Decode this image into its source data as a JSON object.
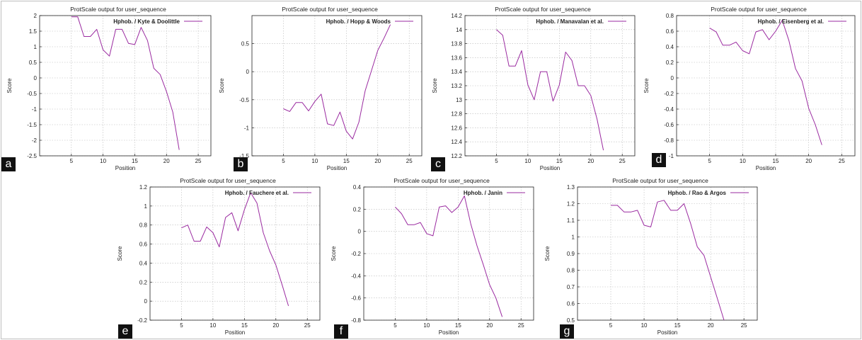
{
  "colors": {
    "series": "#9a2aa0",
    "grid": "#b8b8b8",
    "axis": "#222222",
    "tag_bg": "#111111",
    "tag_text": "#ffffff"
  },
  "chart_data": [
    {
      "tag": "a",
      "type": "line",
      "title": "ProtScale output for user_sequence",
      "xlabel": "Position",
      "ylabel": "Score",
      "xlim": [
        0,
        27
      ],
      "ylim": [
        -2.5,
        2
      ],
      "xticks": [
        5,
        10,
        15,
        20,
        25
      ],
      "xtick_labels": [
        "5",
        "10",
        "15",
        "20",
        "25"
      ],
      "yticks": [
        -2.5,
        -2,
        -1.5,
        -1,
        -0.5,
        0,
        0.5,
        1,
        1.5,
        2
      ],
      "ytick_labels": [
        "-2.5",
        "-2",
        "-1.5",
        "-1",
        "-0.5",
        "0",
        "0.5",
        "1",
        "1.5",
        "2"
      ],
      "grid": true,
      "legend_position": "top-right",
      "series": [
        {
          "name": "Hphob. / Kyte & Doolittle",
          "x": [
            5,
            6,
            7,
            8,
            9,
            10,
            11,
            12,
            13,
            14,
            15,
            16,
            17,
            18,
            19,
            20,
            21,
            22
          ],
          "y": [
            1.96,
            1.96,
            1.33,
            1.33,
            1.56,
            0.9,
            0.7,
            1.56,
            1.56,
            1.11,
            1.07,
            1.62,
            1.2,
            0.31,
            0.11,
            -0.44,
            -1.1,
            -2.31
          ]
        }
      ]
    },
    {
      "tag": "b",
      "type": "line",
      "title": "ProtScale output for user_sequence",
      "xlabel": "Position",
      "ylabel": "Score",
      "xlim": [
        0,
        27
      ],
      "ylim": [
        -1.5,
        1
      ],
      "xticks": [
        5,
        10,
        15,
        20,
        25
      ],
      "xtick_labels": [
        "5",
        "10",
        "15",
        "20",
        "25"
      ],
      "yticks": [
        -1.5,
        -1,
        -0.5,
        0,
        0.5
      ],
      "ytick_labels": [
        "-1.5",
        "-1",
        "-0.5",
        "0",
        "0.5"
      ],
      "grid": true,
      "legend_position": "top-right",
      "series": [
        {
          "name": "Hphob. / Hopp & Woods",
          "x": [
            5,
            6,
            7,
            8,
            9,
            10,
            11,
            12,
            13,
            14,
            15,
            16,
            17,
            18,
            19,
            20,
            21,
            22
          ],
          "y": [
            -0.66,
            -0.71,
            -0.55,
            -0.55,
            -0.7,
            -0.53,
            -0.4,
            -0.93,
            -0.96,
            -0.72,
            -1.06,
            -1.2,
            -0.9,
            -0.34,
            0.02,
            0.38,
            0.6,
            0.84
          ]
        }
      ]
    },
    {
      "tag": "c",
      "type": "line",
      "title": "ProtScale output for user_sequence",
      "xlabel": "Position",
      "ylabel": "Score",
      "xlim": [
        0,
        27
      ],
      "ylim": [
        12.2,
        14.2
      ],
      "xticks": [
        5,
        10,
        15,
        20,
        25
      ],
      "xtick_labels": [
        "5",
        "10",
        "15",
        "20",
        "25"
      ],
      "yticks": [
        12.2,
        12.4,
        12.6,
        12.8,
        13,
        13.2,
        13.4,
        13.6,
        13.8,
        14,
        14.2
      ],
      "ytick_labels": [
        "12.2",
        "12.4",
        "12.6",
        "12.8",
        "13",
        "13.2",
        "13.4",
        "13.6",
        "13.8",
        "14",
        "14.2"
      ],
      "grid": true,
      "legend_position": "top-right",
      "series": [
        {
          "name": "Hphob. / Manavalan et al.",
          "x": [
            5,
            6,
            7,
            8,
            9,
            10,
            11,
            12,
            13,
            14,
            15,
            16,
            17,
            18,
            19,
            20,
            21,
            22
          ],
          "y": [
            14.0,
            13.92,
            13.48,
            13.48,
            13.7,
            13.21,
            13.0,
            13.4,
            13.4,
            12.98,
            13.21,
            13.68,
            13.56,
            13.2,
            13.2,
            13.06,
            12.72,
            12.28
          ]
        }
      ]
    },
    {
      "tag": "d",
      "type": "line",
      "title": "ProtScale output for user_sequence",
      "xlabel": "Position",
      "ylabel": "Score",
      "xlim": [
        0,
        27
      ],
      "ylim": [
        -1,
        0.8
      ],
      "xticks": [
        5,
        10,
        15,
        20,
        25
      ],
      "xtick_labels": [
        "5",
        "10",
        "15",
        "20",
        "25"
      ],
      "yticks": [
        -1,
        -0.8,
        -0.6,
        -0.4,
        -0.2,
        0,
        0.2,
        0.4,
        0.6,
        0.8
      ],
      "ytick_labels": [
        "-1",
        "-0.8",
        "-0.6",
        "-0.4",
        "-0.2",
        "0",
        "0.2",
        "0.4",
        "0.6",
        "0.8"
      ],
      "grid": true,
      "legend_position": "top-right",
      "series": [
        {
          "name": "Hphob. / Eisenberg et al.",
          "x": [
            5,
            6,
            7,
            8,
            9,
            10,
            11,
            12,
            13,
            14,
            15,
            16,
            17,
            18,
            19,
            20,
            21,
            22
          ],
          "y": [
            0.64,
            0.59,
            0.42,
            0.42,
            0.46,
            0.35,
            0.31,
            0.59,
            0.62,
            0.49,
            0.6,
            0.74,
            0.48,
            0.12,
            -0.04,
            -0.39,
            -0.6,
            -0.86
          ]
        }
      ]
    },
    {
      "tag": "e",
      "type": "line",
      "title": "ProtScale output for user_sequence",
      "xlabel": "Position",
      "ylabel": "Score",
      "xlim": [
        0,
        27
      ],
      "ylim": [
        -0.2,
        1.2
      ],
      "xticks": [
        5,
        10,
        15,
        20,
        25
      ],
      "xtick_labels": [
        "5",
        "10",
        "15",
        "20",
        "25"
      ],
      "yticks": [
        -0.2,
        0,
        0.2,
        0.4,
        0.6,
        0.8,
        1,
        1.2
      ],
      "ytick_labels": [
        "-0.2",
        "0",
        "0.2",
        "0.4",
        "0.6",
        "0.8",
        "1",
        "1.2"
      ],
      "grid": true,
      "legend_position": "top-right",
      "series": [
        {
          "name": "Hphob. / Fauchere et al.",
          "x": [
            5,
            6,
            7,
            8,
            9,
            10,
            11,
            12,
            13,
            14,
            15,
            16,
            17,
            18,
            19,
            20,
            21,
            22
          ],
          "y": [
            0.77,
            0.8,
            0.63,
            0.63,
            0.78,
            0.72,
            0.57,
            0.88,
            0.93,
            0.74,
            0.96,
            1.14,
            1.03,
            0.72,
            0.53,
            0.38,
            0.17,
            -0.05
          ]
        }
      ]
    },
    {
      "tag": "f",
      "type": "line",
      "title": "ProtScale output for user_sequence",
      "xlabel": "Position",
      "ylabel": "Score",
      "xlim": [
        0,
        27
      ],
      "ylim": [
        -0.8,
        0.4
      ],
      "xticks": [
        5,
        10,
        15,
        20,
        25
      ],
      "xtick_labels": [
        "5",
        "10",
        "15",
        "20",
        "25"
      ],
      "yticks": [
        -0.8,
        -0.6,
        -0.4,
        -0.2,
        0,
        0.2,
        0.4
      ],
      "ytick_labels": [
        "-0.8",
        "-0.6",
        "-0.4",
        "-0.2",
        "0",
        "0.2",
        "0.4"
      ],
      "grid": true,
      "legend_position": "top-right",
      "series": [
        {
          "name": "Hphob. / Janin",
          "x": [
            5,
            6,
            7,
            8,
            9,
            10,
            11,
            12,
            13,
            14,
            15,
            16,
            17,
            18,
            19,
            20,
            21,
            22
          ],
          "y": [
            0.22,
            0.16,
            0.06,
            0.06,
            0.08,
            -0.02,
            -0.04,
            0.22,
            0.23,
            0.17,
            0.22,
            0.32,
            0.07,
            -0.13,
            -0.3,
            -0.48,
            -0.6,
            -0.77
          ]
        }
      ]
    },
    {
      "tag": "g",
      "type": "line",
      "title": "ProtScale output for user_sequence",
      "xlabel": "Position",
      "ylabel": "Score",
      "xlim": [
        0,
        27
      ],
      "ylim": [
        0.5,
        1.3
      ],
      "xticks": [
        5,
        10,
        15,
        20,
        25
      ],
      "xtick_labels": [
        "5",
        "10",
        "15",
        "20",
        "25"
      ],
      "yticks": [
        0.5,
        0.6,
        0.7,
        0.8,
        0.9,
        1,
        1.1,
        1.2,
        1.3
      ],
      "ytick_labels": [
        "0.5",
        "0.6",
        "0.7",
        "0.8",
        "0.9",
        "1",
        "1.1",
        "1.2",
        "1.3"
      ],
      "grid": true,
      "legend_position": "top-right",
      "series": [
        {
          "name": "Hphob. / Rao & Argos",
          "x": [
            5,
            6,
            7,
            8,
            9,
            10,
            11,
            12,
            13,
            14,
            15,
            16,
            17,
            18,
            19,
            20,
            21,
            22
          ],
          "y": [
            1.19,
            1.19,
            1.15,
            1.15,
            1.16,
            1.07,
            1.06,
            1.21,
            1.22,
            1.16,
            1.16,
            1.2,
            1.08,
            0.94,
            0.89,
            0.76,
            0.63,
            0.5
          ]
        }
      ]
    }
  ]
}
